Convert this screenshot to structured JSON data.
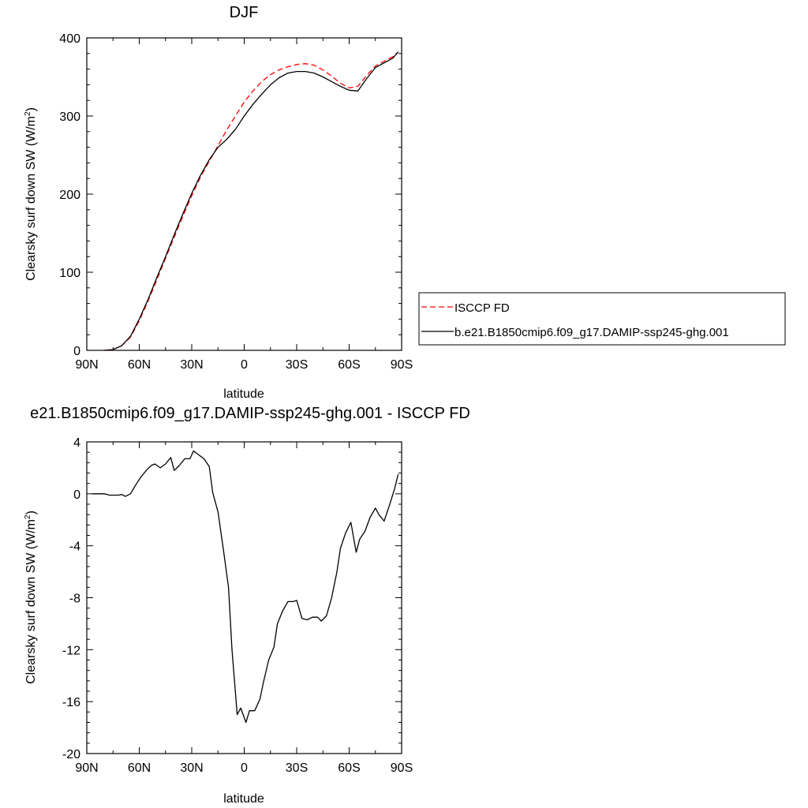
{
  "chart_data": [
    {
      "type": "line",
      "title": "DJF",
      "xlabel": "latitude",
      "ylabel": "Clearsky surf down SW (W/m",
      "ylabel_sup": "2",
      "ylabel_end": ")",
      "xlim": [
        90,
        -90
      ],
      "ylim": [
        0,
        400
      ],
      "xticks": [
        90,
        60,
        30,
        0,
        -30,
        -60,
        -90
      ],
      "xtick_labels": [
        "90N",
        "60N",
        "30N",
        "0",
        "30S",
        "60S",
        "90S"
      ],
      "yticks": [
        0,
        100,
        200,
        300,
        400
      ],
      "ytick_labels": [
        "0",
        "100",
        "200",
        "300",
        "400"
      ],
      "legend_position": "right",
      "series": [
        {
          "name": "ISCCP FD",
          "color": "#ff0000",
          "dash": "dashed",
          "x": [
            80,
            75,
            70,
            65,
            60,
            55,
            50,
            45,
            40,
            35,
            30,
            25,
            20,
            15,
            10,
            5,
            0,
            -5,
            -10,
            -15,
            -20,
            -25,
            -30,
            -35,
            -40,
            -45,
            -50,
            -55,
            -60,
            -65,
            -70,
            -75,
            -80,
            -85,
            -88
          ],
          "y": [
            0,
            1,
            6,
            17,
            38,
            63,
            90,
            118,
            145,
            172,
            198,
            222,
            242,
            262,
            282,
            300,
            318,
            332,
            344,
            353,
            359,
            363,
            366,
            367,
            365,
            359,
            351,
            342,
            336,
            338,
            352,
            364,
            370,
            376,
            382
          ]
        },
        {
          "name": "b.e21.B1850cmip6.f09_g17.DAMIP-ssp245-ghg.001",
          "color": "#000000",
          "dash": "solid",
          "x": [
            80,
            75,
            70,
            65,
            60,
            55,
            50,
            45,
            40,
            35,
            30,
            25,
            20,
            15,
            10,
            5,
            0,
            -5,
            -10,
            -15,
            -20,
            -25,
            -30,
            -35,
            -40,
            -45,
            -50,
            -55,
            -60,
            -65,
            -70,
            -75,
            -80,
            -85,
            -88
          ],
          "y": [
            0,
            1,
            6,
            18,
            40,
            65,
            93,
            120,
            148,
            175,
            201,
            224,
            244,
            260,
            270,
            283,
            300,
            315,
            328,
            340,
            349,
            355,
            357,
            357,
            355,
            350,
            344,
            338,
            333,
            332,
            348,
            362,
            368,
            374,
            382
          ]
        }
      ]
    },
    {
      "type": "line",
      "title": "e21.B1850cmip6.f09_g17.DAMIP-ssp245-ghg.001 - ISCCP FD",
      "xlabel": "latitude",
      "ylabel": "Clearsky surf down SW (W/m",
      "ylabel_sup": "2",
      "ylabel_end": ")",
      "xlim": [
        90,
        -90
      ],
      "ylim": [
        -20,
        4
      ],
      "xticks": [
        90,
        60,
        30,
        0,
        -30,
        -60,
        -90
      ],
      "xtick_labels": [
        "90N",
        "60N",
        "30N",
        "0",
        "30S",
        "60S",
        "90S"
      ],
      "yticks": [
        -20,
        -16,
        -12,
        -8,
        -4,
        0,
        4
      ],
      "ytick_labels": [
        "-20",
        "-16",
        "-12",
        "-8",
        "-4",
        "0",
        "4"
      ],
      "series": [
        {
          "color": "#000000",
          "dash": "solid",
          "x": [
            87,
            85,
            83,
            80,
            77,
            75,
            72,
            70,
            68,
            65,
            62,
            59,
            56,
            53,
            51,
            48,
            45,
            42,
            40,
            37,
            34,
            31,
            29,
            26,
            23,
            20,
            18,
            15,
            12,
            9,
            7,
            4,
            2,
            -1,
            -3,
            -6,
            -9,
            -11,
            -14,
            -17,
            -19,
            -22,
            -25,
            -28,
            -30,
            -33,
            -36,
            -39,
            -42,
            -44,
            -47,
            -50,
            -53,
            -55,
            -58,
            -61,
            -64,
            -66,
            -69,
            -72,
            -75,
            -77,
            -80,
            -83,
            -86,
            -88
          ],
          "y": [
            0,
            0,
            0,
            0,
            -0.1,
            -0.1,
            -0.1,
            -0.05,
            -0.2,
            0,
            0.7,
            1.3,
            1.8,
            2.2,
            2.3,
            2.0,
            2.3,
            2.8,
            1.8,
            2.2,
            2.7,
            2.7,
            3.3,
            3.0,
            2.7,
            2.1,
            0.1,
            -1.4,
            -4.2,
            -7.2,
            -12,
            -17.0,
            -16.5,
            -17.6,
            -16.7,
            -16.7,
            -15.8,
            -14.5,
            -12.8,
            -11.8,
            -10.0,
            -9.0,
            -8.3,
            -8.3,
            -8.2,
            -9.6,
            -9.7,
            -9.5,
            -9.5,
            -9.8,
            -9.4,
            -8.0,
            -6.0,
            -4.2,
            -3.0,
            -2.2,
            -4.5,
            -3.5,
            -2.9,
            -1.8,
            -1.1,
            -1.6,
            -2.1,
            -0.9,
            0.4,
            1.5
          ]
        }
      ]
    }
  ]
}
